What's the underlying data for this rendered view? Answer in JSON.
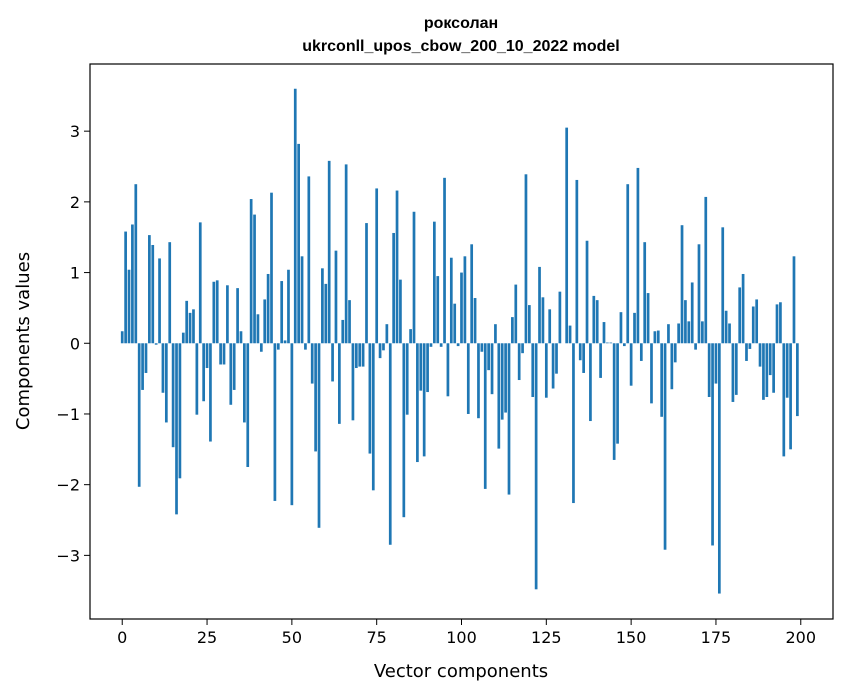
{
  "chart_data": {
    "type": "bar",
    "title": "роксолан",
    "subtitle": "ukrconll_upos_cbow_200_10_2022 model",
    "xlabel": "Vector components",
    "ylabel": "Components values",
    "xlim": [
      -9.5,
      209.5
    ],
    "ylim": [
      -3.9,
      3.95
    ],
    "xticks": [
      0,
      25,
      50,
      75,
      100,
      125,
      150,
      175,
      200
    ],
    "yticks": [
      -3,
      -2,
      -1,
      0,
      1,
      2,
      3
    ],
    "grid": false,
    "bar_color": "#1f77b4",
    "x": [
      0,
      1,
      2,
      3,
      4,
      5,
      6,
      7,
      8,
      9,
      10,
      11,
      12,
      13,
      14,
      15,
      16,
      17,
      18,
      19,
      20,
      21,
      22,
      23,
      24,
      25,
      26,
      27,
      28,
      29,
      30,
      31,
      32,
      33,
      34,
      35,
      36,
      37,
      38,
      39,
      40,
      41,
      42,
      43,
      44,
      45,
      46,
      47,
      48,
      49,
      50,
      51,
      52,
      53,
      54,
      55,
      56,
      57,
      58,
      59,
      60,
      61,
      62,
      63,
      64,
      65,
      66,
      67,
      68,
      69,
      70,
      71,
      72,
      73,
      74,
      75,
      76,
      77,
      78,
      79,
      80,
      81,
      82,
      83,
      84,
      85,
      86,
      87,
      88,
      89,
      90,
      91,
      92,
      93,
      94,
      95,
      96,
      97,
      98,
      99,
      100,
      101,
      102,
      103,
      104,
      105,
      106,
      107,
      108,
      109,
      110,
      111,
      112,
      113,
      114,
      115,
      116,
      117,
      118,
      119,
      120,
      121,
      122,
      123,
      124,
      125,
      126,
      127,
      128,
      129,
      130,
      131,
      132,
      133,
      134,
      135,
      136,
      137,
      138,
      139,
      140,
      141,
      142,
      143,
      144,
      145,
      146,
      147,
      148,
      149,
      150,
      151,
      152,
      153,
      154,
      155,
      156,
      157,
      158,
      159,
      160,
      161,
      162,
      163,
      164,
      165,
      166,
      167,
      168,
      169,
      170,
      171,
      172,
      173,
      174,
      175,
      176,
      177,
      178,
      179,
      180,
      181,
      182,
      183,
      184,
      185,
      186,
      187,
      188,
      189,
      190,
      191,
      192,
      193,
      194,
      195,
      196,
      197,
      198,
      199
    ],
    "values": [
      0.17,
      1.58,
      1.04,
      1.68,
      2.25,
      -2.03,
      -0.66,
      -0.42,
      1.53,
      1.39,
      -0.02,
      1.2,
      -0.7,
      -1.12,
      1.43,
      -1.47,
      -2.42,
      -1.91,
      0.15,
      0.6,
      0.43,
      0.48,
      -1.01,
      1.71,
      -0.82,
      -0.35,
      -1.39,
      0.87,
      0.89,
      -0.3,
      -0.3,
      0.82,
      -0.87,
      -0.66,
      0.78,
      0.17,
      -1.12,
      -1.75,
      2.04,
      1.82,
      0.41,
      -0.12,
      0.62,
      0.98,
      2.13,
      -2.23,
      -0.09,
      0.88,
      0.04,
      1.04,
      -2.29,
      3.6,
      2.82,
      1.23,
      -0.09,
      2.36,
      -0.57,
      -1.53,
      -2.61,
      1.06,
      0.84,
      2.58,
      -0.54,
      1.31,
      -1.14,
      0.33,
      2.53,
      0.61,
      -1.09,
      -0.35,
      -0.33,
      -0.33,
      1.7,
      -1.56,
      -2.08,
      2.19,
      -0.21,
      -0.1,
      0.27,
      -2.85,
      1.56,
      2.16,
      0.9,
      -2.46,
      -1.01,
      0.2,
      1.86,
      -1.68,
      -0.67,
      -1.6,
      -0.69,
      -0.05,
      1.72,
      0.95,
      -0.05,
      2.34,
      -0.75,
      1.21,
      0.56,
      -0.04,
      1.0,
      1.23,
      -1.0,
      1.4,
      0.64,
      -1.06,
      -0.12,
      -2.06,
      -0.38,
      -0.72,
      0.27,
      -1.49,
      -1.08,
      -0.98,
      -2.14,
      0.37,
      0.83,
      -0.52,
      -0.14,
      2.39,
      0.54,
      -0.76,
      -3.48,
      1.08,
      0.65,
      -0.77,
      0.48,
      -0.64,
      -0.43,
      0.73,
      0.0,
      3.05,
      0.25,
      -2.26,
      2.31,
      -0.24,
      -0.42,
      1.45,
      -1.1,
      0.67,
      0.61,
      -0.49,
      0.3,
      0.01,
      0.01,
      -1.65,
      -1.42,
      0.44,
      -0.04,
      2.25,
      -0.6,
      0.43,
      2.48,
      -0.25,
      1.43,
      0.71,
      -0.85,
      0.17,
      0.18,
      -1.04,
      -2.92,
      0.27,
      -0.65,
      -0.27,
      0.28,
      1.67,
      0.61,
      0.31,
      0.86,
      -0.09,
      1.4,
      0.31,
      2.07,
      -0.76,
      -2.86,
      -0.57,
      -3.54,
      1.64,
      0.46,
      0.28,
      -0.83,
      -0.73,
      0.79,
      0.98,
      -0.25,
      -0.08,
      0.52,
      0.62,
      -0.33,
      -0.8,
      -0.76,
      -0.45,
      -0.7,
      0.55,
      0.58,
      -1.6,
      -0.77,
      -1.5,
      1.23,
      -1.03
    ]
  }
}
